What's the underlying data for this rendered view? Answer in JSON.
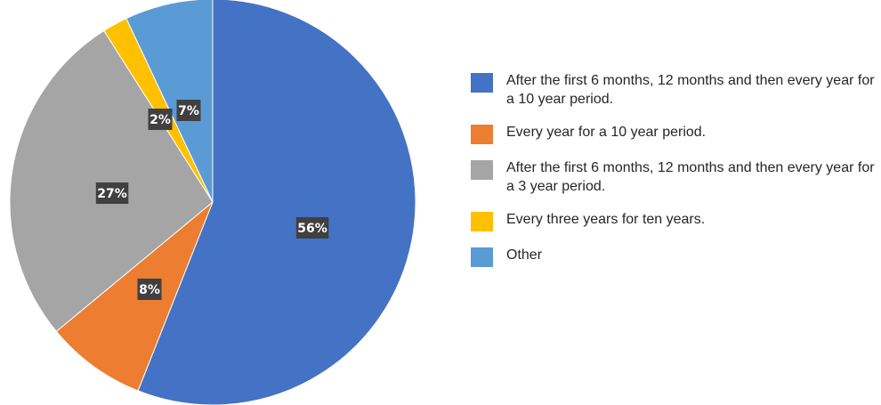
{
  "chart_data": {
    "type": "pie",
    "title": "",
    "slices": [
      {
        "label": "After the first 6 months, 12 months and then every year for a 10 year period.",
        "value": 56,
        "display": "56%",
        "color": "#4472C4"
      },
      {
        "label": "Every year for a 10 year period.",
        "value": 8,
        "display": "8%",
        "color": "#ED7D31"
      },
      {
        "label": "After the first 6 months, 12 months and then every year for a 3 year period.",
        "value": 27,
        "display": "27%",
        "color": "#A5A5A5"
      },
      {
        "label": "Every three years for ten years.",
        "value": 2,
        "display": "2%",
        "color": "#FFC000"
      },
      {
        "label": "Other",
        "value": 7,
        "display": "7%",
        "color": "#5B9BD5"
      }
    ],
    "legend_position": "right"
  }
}
